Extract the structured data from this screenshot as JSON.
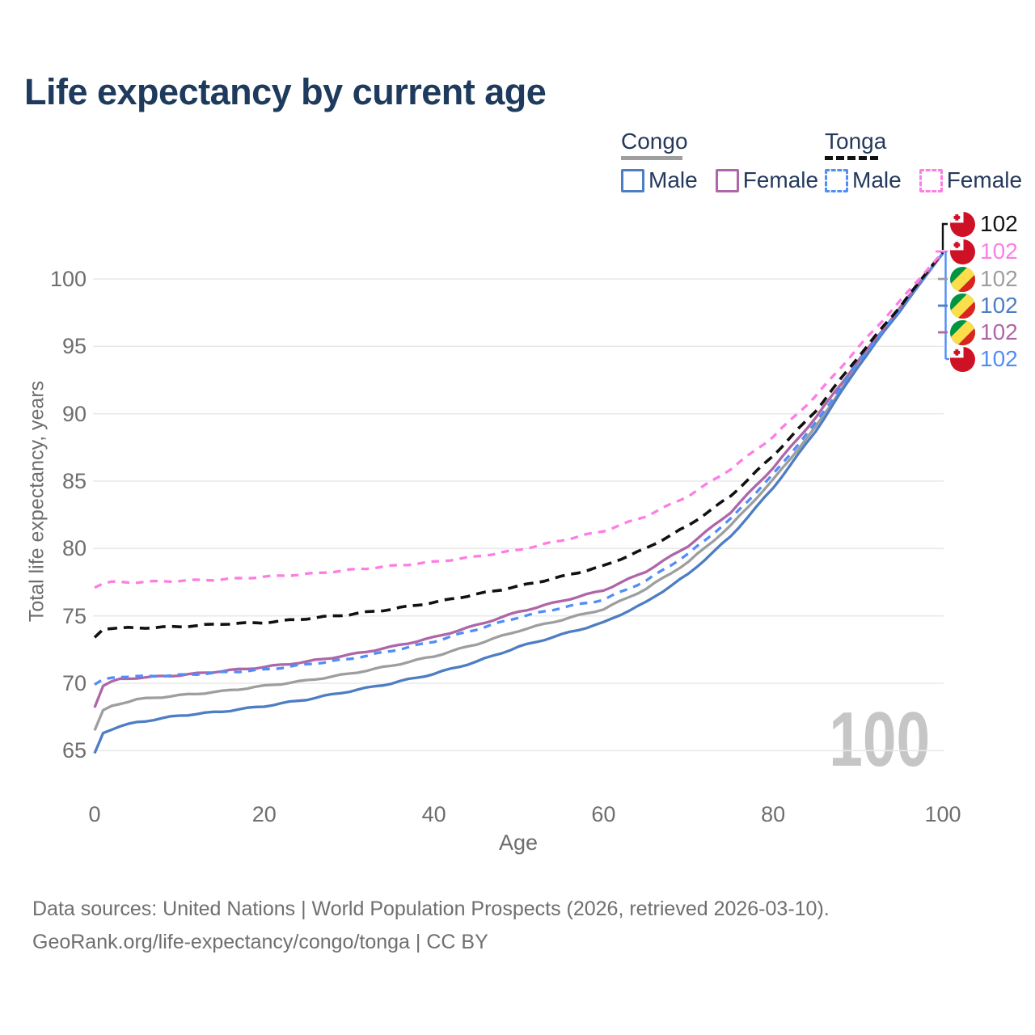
{
  "title": "Life expectancy by current age",
  "legend": {
    "groups": [
      {
        "label": "Congo",
        "line_style": "solid",
        "header_line_color": "#9e9e9e",
        "items": [
          {
            "label": "Male",
            "color": "#4d7dc3"
          },
          {
            "label": "Female",
            "color": "#ae66a8"
          }
        ]
      },
      {
        "label": "Tonga",
        "line_style": "dashed",
        "header_line_color": "#111111",
        "items": [
          {
            "label": "Male",
            "color": "#4f8ef8"
          },
          {
            "label": "Female",
            "color": "#fd7ee3"
          }
        ]
      }
    ]
  },
  "axes": {
    "x_label": "Age",
    "y_label": "Total life expectancy, years",
    "x_ticks": [
      0,
      20,
      40,
      60,
      80,
      100
    ],
    "y_ticks": [
      65,
      70,
      75,
      80,
      85,
      90,
      95,
      100
    ]
  },
  "watermark": "100",
  "footer": {
    "line1": "Data sources: United Nations | World Population Prospects (2026, retrieved 2026-03-10).",
    "line2": "GeoRank.org/life-expectancy/congo/tonga | CC BY"
  },
  "chart_data": {
    "type": "line",
    "title": "Life expectancy by current age",
    "xlabel": "Age",
    "ylabel": "Total life expectancy, years",
    "xlim": [
      0,
      100
    ],
    "ylim": [
      63,
      103
    ],
    "grid": "horizontal",
    "legend_position": "top-right",
    "ages": [
      0,
      1,
      2,
      3,
      5,
      10,
      15,
      20,
      25,
      30,
      35,
      40,
      45,
      50,
      55,
      60,
      65,
      70,
      75,
      80,
      85,
      90,
      95,
      100
    ],
    "series": [
      {
        "name": "Congo",
        "country": "Congo",
        "sex": "both",
        "flag": "congo",
        "color": "#9e9e9e",
        "dashed": false,
        "end_value": 102,
        "values": [
          66.5,
          68.0,
          68.3,
          68.5,
          68.8,
          69.1,
          69.4,
          69.8,
          70.2,
          70.7,
          71.3,
          72.0,
          72.9,
          73.9,
          74.7,
          75.5,
          77.0,
          79.0,
          81.7,
          85.1,
          89.0,
          93.7,
          97.8,
          101.9
        ]
      },
      {
        "name": "Congo Male",
        "country": "Congo",
        "sex": "male",
        "flag": "congo",
        "color": "#4d7dc3",
        "dashed": false,
        "end_value": 102,
        "values": [
          64.8,
          66.3,
          66.6,
          66.8,
          67.1,
          67.6,
          67.9,
          68.3,
          68.8,
          69.4,
          70.0,
          70.7,
          71.6,
          72.7,
          73.6,
          74.5,
          76.0,
          78.1,
          80.9,
          84.5,
          88.7,
          93.5,
          97.7,
          101.9
        ]
      },
      {
        "name": "Congo Female",
        "country": "Congo",
        "sex": "female",
        "flag": "congo",
        "color": "#ae66a8",
        "dashed": false,
        "end_value": 102,
        "values": [
          68.2,
          69.8,
          70.1,
          70.3,
          70.4,
          70.6,
          70.9,
          71.2,
          71.6,
          72.1,
          72.7,
          73.4,
          74.3,
          75.3,
          76.1,
          76.9,
          78.3,
          80.2,
          82.7,
          86.0,
          89.7,
          93.9,
          97.9,
          101.9
        ]
      },
      {
        "name": "Tonga Male",
        "country": "Tonga",
        "sex": "male",
        "flag": "tonga",
        "color": "#4f8ef8",
        "dashed": true,
        "end_value": 102,
        "values": [
          69.9,
          70.3,
          70.4,
          70.5,
          70.5,
          70.6,
          70.8,
          71.0,
          71.4,
          71.8,
          72.4,
          73.1,
          74.0,
          74.9,
          75.6,
          76.2,
          77.6,
          79.6,
          82.2,
          85.5,
          89.3,
          93.8,
          97.8,
          101.9
        ]
      },
      {
        "name": "Tonga",
        "country": "Tonga",
        "sex": "both",
        "flag": "tonga",
        "color": "#111111",
        "dashed": true,
        "end_value": 102,
        "values": [
          73.4,
          74.0,
          74.1,
          74.1,
          74.1,
          74.2,
          74.4,
          74.5,
          74.8,
          75.1,
          75.5,
          76.0,
          76.6,
          77.2,
          77.9,
          78.7,
          80.0,
          81.7,
          83.9,
          86.9,
          90.2,
          94.2,
          98.0,
          102.0
        ]
      },
      {
        "name": "Tonga Female",
        "country": "Tonga",
        "sex": "female",
        "flag": "tonga",
        "color": "#fd7ee3",
        "dashed": true,
        "end_value": 102,
        "values": [
          77.1,
          77.4,
          77.5,
          77.5,
          77.5,
          77.6,
          77.7,
          77.9,
          78.1,
          78.4,
          78.7,
          79.0,
          79.4,
          79.9,
          80.6,
          81.3,
          82.4,
          83.9,
          85.9,
          88.3,
          91.3,
          94.9,
          98.4,
          102.0
        ]
      }
    ],
    "end_label_order": [
      "Tonga",
      "Tonga Female",
      "Congo",
      "Congo Male",
      "Congo Female",
      "Tonga Male"
    ],
    "end_label_text": "102"
  }
}
